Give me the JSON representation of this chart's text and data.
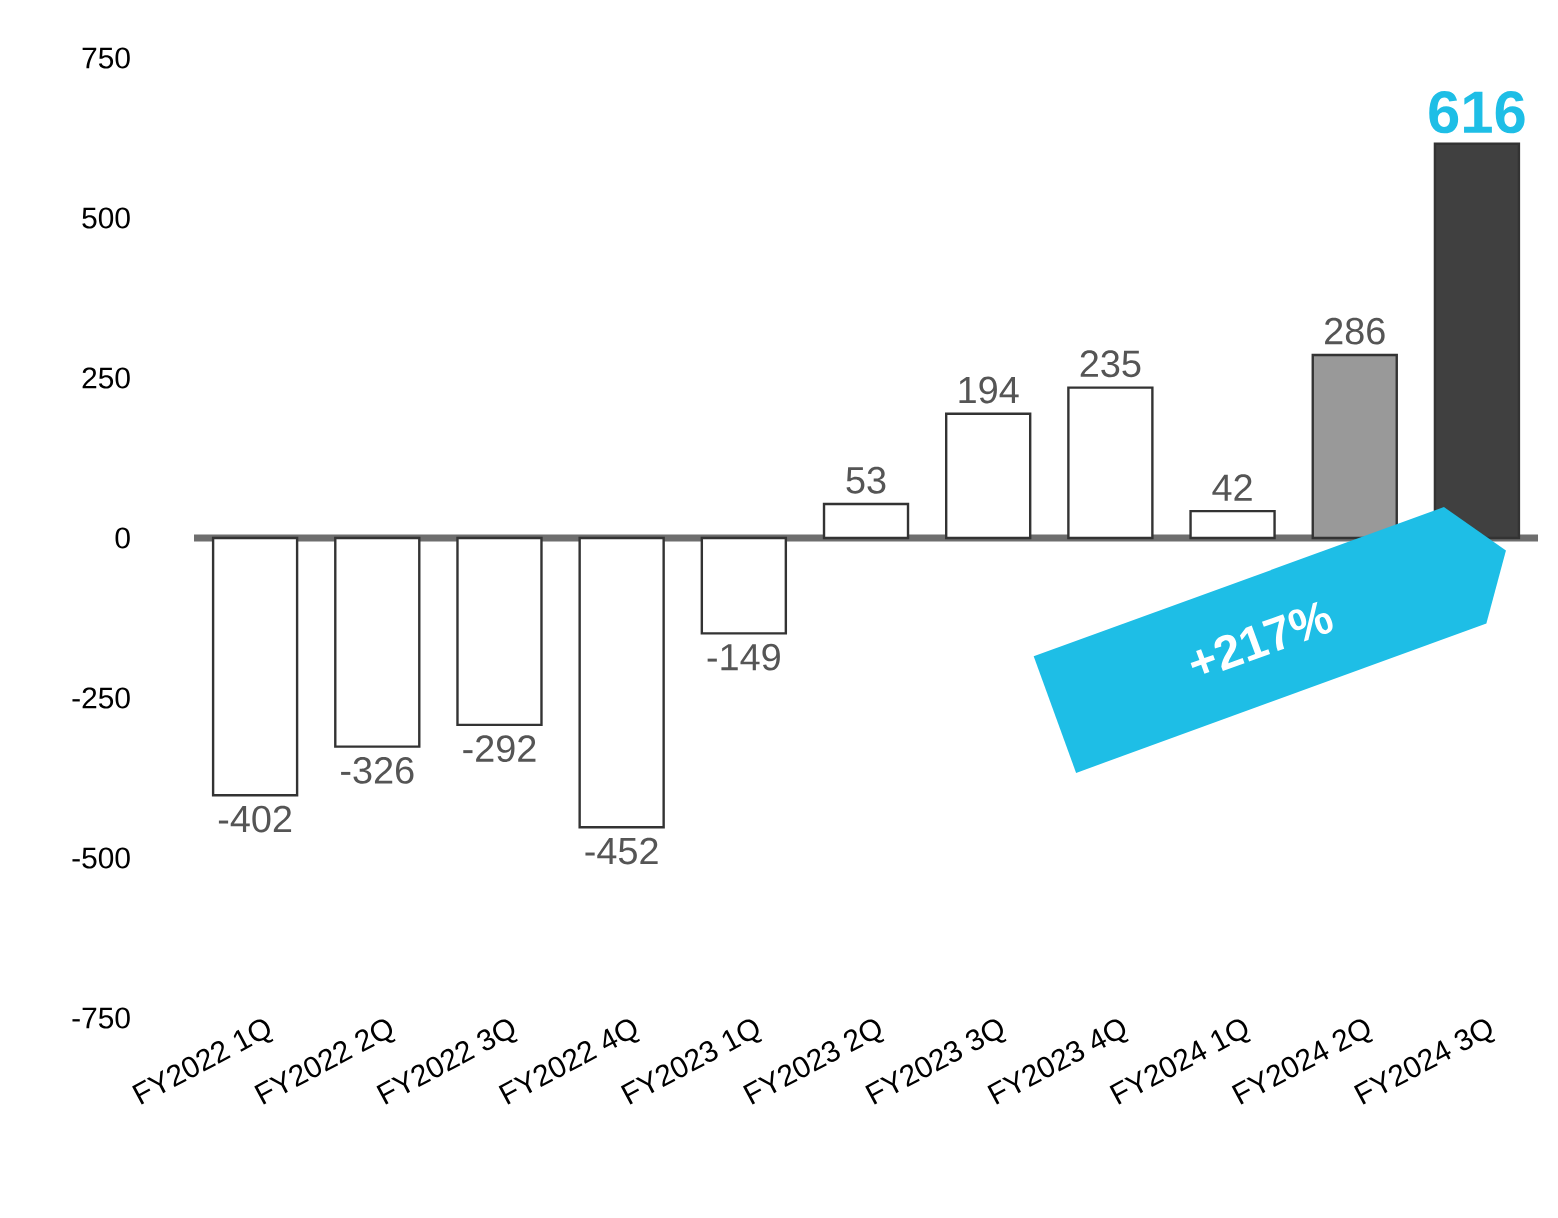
{
  "chart_data": {
    "type": "bar",
    "categories": [
      "FY2022 1Q",
      "FY2022 2Q",
      "FY2022 3Q",
      "FY2022 4Q",
      "FY2023 1Q",
      "FY2023 2Q",
      "FY2023 3Q",
      "FY2023 4Q",
      "FY2024 1Q",
      "FY2024 2Q",
      "FY2024 3Q"
    ],
    "values": [
      -402,
      -326,
      -292,
      -452,
      -149,
      53,
      194,
      235,
      42,
      286,
      616
    ],
    "colors": [
      "#ffffff",
      "#ffffff",
      "#ffffff",
      "#ffffff",
      "#ffffff",
      "#ffffff",
      "#ffffff",
      "#ffffff",
      "#ffffff",
      "#999999",
      "#404040"
    ],
    "ylim": [
      -750,
      750
    ],
    "yticks": [
      -750,
      -500,
      -250,
      0,
      250,
      500,
      750
    ],
    "data_labels": true,
    "ref_lines": [
      {
        "axis": "y",
        "value": 0,
        "color": "#6e6e6e"
      }
    ],
    "annotations": [
      "+217%"
    ]
  }
}
